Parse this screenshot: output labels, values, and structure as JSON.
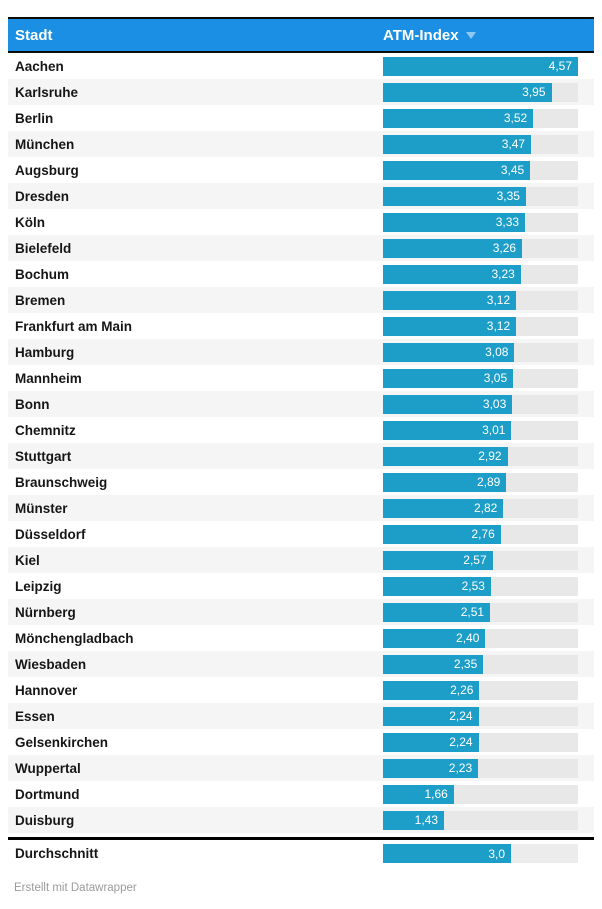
{
  "header": {
    "city_column_label": "Stadt",
    "value_column_label": "ATM-Index",
    "sort_icon": "triangle-down"
  },
  "chart_data": {
    "type": "bar",
    "title": "",
    "xlabel": "Stadt",
    "ylabel": "ATM-Index",
    "xlim": [
      0,
      4.57
    ],
    "sort": "descending",
    "categories": [
      "Aachen",
      "Karlsruhe",
      "Berlin",
      "München",
      "Augsburg",
      "Dresden",
      "Köln",
      "Bielefeld",
      "Bochum",
      "Bremen",
      "Frankfurt am Main",
      "Hamburg",
      "Mannheim",
      "Bonn",
      "Chemnitz",
      "Stuttgart",
      "Braunschweig",
      "Münster",
      "Düsseldorf",
      "Kiel",
      "Leipzig",
      "Nürnberg",
      "Mönchengladbach",
      "Wiesbaden",
      "Hannover",
      "Essen",
      "Gelsenkirchen",
      "Wuppertal",
      "Dortmund",
      "Duisburg"
    ],
    "values": [
      4.57,
      3.95,
      3.52,
      3.47,
      3.45,
      3.35,
      3.33,
      3.26,
      3.23,
      3.12,
      3.12,
      3.08,
      3.05,
      3.03,
      3.01,
      2.92,
      2.89,
      2.82,
      2.76,
      2.57,
      2.53,
      2.51,
      2.4,
      2.35,
      2.26,
      2.24,
      2.24,
      2.23,
      1.66,
      1.43
    ],
    "value_labels": [
      "4,57",
      "3,95",
      "3,52",
      "3,47",
      "3,45",
      "3,35",
      "3,33",
      "3,26",
      "3,23",
      "3,12",
      "3,12",
      "3,08",
      "3,05",
      "3,03",
      "3,01",
      "2,92",
      "2,89",
      "2,82",
      "2,76",
      "2,57",
      "2,53",
      "2,51",
      "2,40",
      "2,35",
      "2,26",
      "2,24",
      "2,24",
      "2,23",
      "1,66",
      "1,43"
    ],
    "summary": {
      "label": "Durchschnitt",
      "value": 3.0,
      "value_label": "3,0"
    }
  },
  "footer": {
    "credit": "Erstellt mit Datawrapper"
  },
  "colors": {
    "header_bg": "#1a8fe3",
    "bar": "#1d9ec9",
    "track": "#e8e8e8",
    "track_summary": "#ececec",
    "zebra": "#f5f5f5",
    "sort_arrow": "#8ec9f2"
  }
}
